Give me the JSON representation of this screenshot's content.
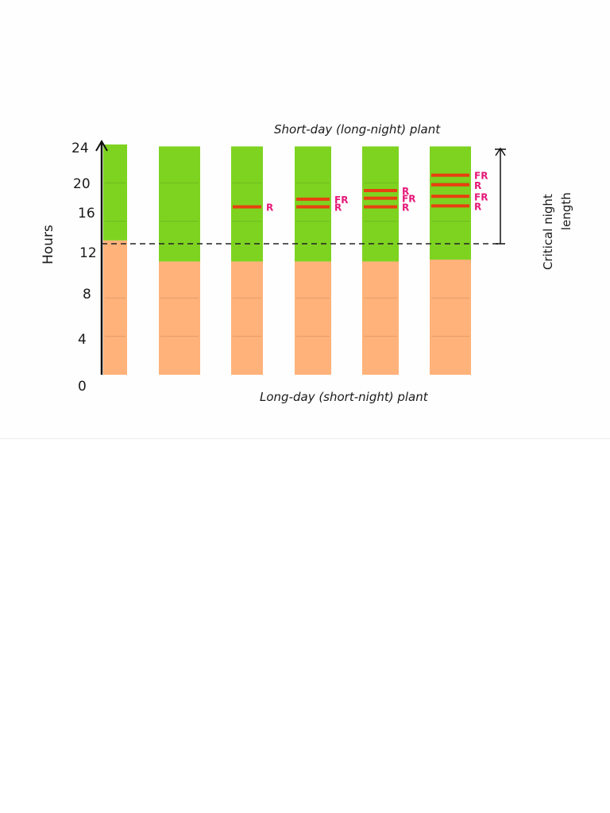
{
  "title_top": "Short-day (long-night) plant",
  "title_bottom": "Long-day (short-night) plant",
  "y_axis_label": "Hours",
  "right_label_line1": "Critical night",
  "right_label_line2": "length",
  "y_ticks": [
    "24",
    "20",
    "16",
    "12",
    "8",
    "4",
    "0"
  ],
  "colors": {
    "night": "#7ed321",
    "day": "#ffb27a",
    "flash": "#e84010",
    "flash_label": "#e6197a"
  },
  "chart_data": {
    "type": "bar",
    "ylabel": "Hours",
    "ylim": [
      0,
      24
    ],
    "critical_night_start_hours": 13,
    "bars": [
      {
        "day_end": 14,
        "night_end": 24,
        "flashes": []
      },
      {
        "day_end": 11.8,
        "night_end": 23.8,
        "flashes": []
      },
      {
        "day_end": 11.8,
        "night_end": 23.8,
        "flashes": [
          {
            "y": 17.5,
            "label": "R"
          }
        ]
      },
      {
        "day_end": 11.8,
        "night_end": 23.8,
        "flashes": [
          {
            "y": 18.3,
            "label": "FR"
          },
          {
            "y": 17.5,
            "label": "R"
          }
        ]
      },
      {
        "day_end": 11.8,
        "night_end": 23.8,
        "flashes": [
          {
            "y": 19.2,
            "label": "R"
          },
          {
            "y": 18.4,
            "label": "FR"
          },
          {
            "y": 17.5,
            "label": "R"
          }
        ]
      },
      {
        "day_end": 12,
        "night_end": 23.8,
        "flashes": [
          {
            "y": 20.8,
            "label": "FR"
          },
          {
            "y": 19.8,
            "label": "R"
          },
          {
            "y": 18.6,
            "label": "FR"
          },
          {
            "y": 17.6,
            "label": "R"
          }
        ]
      }
    ]
  }
}
